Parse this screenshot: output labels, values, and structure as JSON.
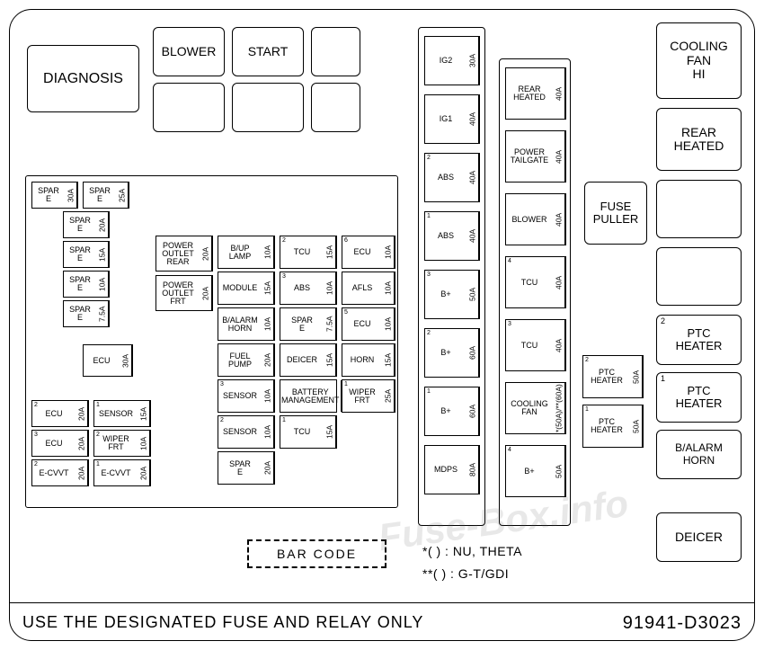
{
  "relays": {
    "diagnosis": "DIAGNOSIS",
    "blower": "BLOWER",
    "start": "START",
    "cooling_fan_hi": "COOLING\nFAN\nHI",
    "rear_heated": "REAR\nHEATED",
    "fuse_puller": "FUSE\nPULLER",
    "ptc_heater_2": "PTC\nHEATER",
    "ptc_heater_1": "PTC\nHEATER",
    "balarm_horn": "B/ALARM\nHORN",
    "deicer": "DEICER"
  },
  "blanks": [
    "",
    "",
    "",
    ""
  ],
  "spares_left": [
    {
      "label": "SPAR\nE",
      "amp": "30A"
    },
    {
      "label": "SPAR\nE",
      "amp": "25A"
    },
    {
      "label": "SPAR\nE",
      "amp": "20A"
    },
    {
      "label": "SPAR\nE",
      "amp": "15A"
    },
    {
      "label": "SPAR\nE",
      "amp": "10A"
    },
    {
      "label": "SPAR\nE",
      "amp": "7.5A"
    }
  ],
  "ecu_block": {
    "ecu_big": {
      "label": "ECU",
      "amp": "30A"
    },
    "rows": [
      {
        "sup": "2",
        "label": "ECU",
        "amp": "20A"
      },
      {
        "sup": "3",
        "label": "ECU",
        "amp": "20A"
      },
      {
        "sup": "2",
        "label": "E-CVVT",
        "amp": "20A"
      }
    ]
  },
  "col_sensor": [
    {
      "sup": "1",
      "label": "SENSOR",
      "amp": "15A"
    },
    {
      "sup": "2",
      "label": "WIPER\nFRT",
      "amp": "10A"
    },
    {
      "sup": "1",
      "label": "E-CVVT",
      "amp": "20A"
    }
  ],
  "col_power": [
    {
      "label": "POWER\nOUTLET\nREAR",
      "amp": "20A"
    },
    {
      "label": "POWER\nOUTLET\nFRT",
      "amp": "20A"
    }
  ],
  "col_mid1": [
    {
      "label": "B/UP\nLAMP",
      "amp": "10A"
    },
    {
      "label": "MODULE",
      "amp": "15A"
    },
    {
      "label": "B/ALARM\nHORN",
      "amp": "10A"
    },
    {
      "label": "FUEL\nPUMP",
      "amp": "20A"
    },
    {
      "sup": "3",
      "label": "SENSOR",
      "amp": "10A"
    },
    {
      "sup": "2",
      "label": "SENSOR",
      "amp": "10A"
    },
    {
      "label": "SPAR\nE",
      "amp": "20A"
    }
  ],
  "col_mid2": [
    {
      "sup": "2",
      "label": "TCU",
      "amp": "15A"
    },
    {
      "sup": "3",
      "label": "ABS",
      "amp": "10A"
    },
    {
      "label": "SPAR\nE",
      "amp": "7.5A"
    },
    {
      "label": "DEICER",
      "amp": "15A"
    },
    {
      "label": "BATTERY\nMANAGEMENT",
      "amp": ""
    },
    {
      "sup": "1",
      "label": "TCU",
      "amp": "15A"
    }
  ],
  "col_mid3": [
    {
      "sup": "6",
      "label": "ECU",
      "amp": "10A"
    },
    {
      "label": "AFLS",
      "amp": "10A"
    },
    {
      "sup": "5",
      "label": "ECU",
      "amp": "10A"
    },
    {
      "label": "HORN",
      "amp": "15A"
    },
    {
      "sup": "1",
      "label": "WIPER\nFRT",
      "amp": "25A"
    }
  ],
  "column_a": [
    {
      "label": "IG2",
      "amp": "30A"
    },
    {
      "label": "IG1",
      "amp": "40A"
    },
    {
      "sup": "2",
      "label": "ABS",
      "amp": "40A"
    },
    {
      "sup": "1",
      "label": "ABS",
      "amp": "40A"
    },
    {
      "sup": "3",
      "label": "B+",
      "amp": "50A"
    },
    {
      "sup": "2",
      "label": "B+",
      "amp": "60A"
    },
    {
      "sup": "1",
      "label": "B+",
      "amp": "60A"
    },
    {
      "label": "MDPS",
      "amp": "80A"
    }
  ],
  "column_b": [
    {
      "label": "REAR\nHEATED",
      "amp": "40A"
    },
    {
      "label": "POWER\nTAILGATE",
      "amp": "40A"
    },
    {
      "label": "BLOWER",
      "amp": "40A"
    },
    {
      "sup": "4",
      "label": "TCU",
      "amp": "40A"
    },
    {
      "sup": "3",
      "label": "TCU",
      "amp": "40A"
    },
    {
      "label": "COOLING\nFAN",
      "amp": "*(50A)/**(60A)"
    },
    {
      "sup": "4",
      "label": "B+",
      "amp": "50A"
    }
  ],
  "ptc_small": [
    {
      "sup": "2",
      "label": "PTC\nHEATER",
      "amp": "50A"
    },
    {
      "sup": "1",
      "label": "PTC\nHEATER",
      "amp": "50A"
    }
  ],
  "right_sup": {
    "ptc2": "2",
    "ptc1": "1"
  },
  "barcode": "BAR CODE",
  "legend": {
    "line1": "*( ) : NU, THETA",
    "line2": "**( ) : G-T/GDI"
  },
  "footer": {
    "left": "USE THE DESIGNATED FUSE AND RELAY ONLY",
    "right": "91941-D3023"
  },
  "watermark": "Fuse-Box.info"
}
